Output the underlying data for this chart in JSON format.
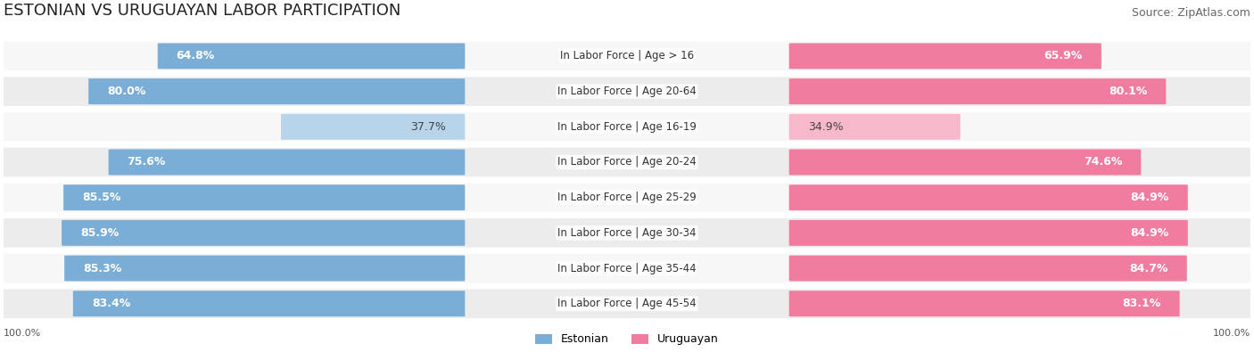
{
  "title": "ESTONIAN VS URUGUAYAN LABOR PARTICIPATION",
  "source": "Source: ZipAtlas.com",
  "categories": [
    "In Labor Force | Age > 16",
    "In Labor Force | Age 20-64",
    "In Labor Force | Age 16-19",
    "In Labor Force | Age 20-24",
    "In Labor Force | Age 25-29",
    "In Labor Force | Age 30-34",
    "In Labor Force | Age 35-44",
    "In Labor Force | Age 45-54"
  ],
  "estonian_values": [
    64.8,
    80.0,
    37.7,
    75.6,
    85.5,
    85.9,
    85.3,
    83.4
  ],
  "uruguayan_values": [
    65.9,
    80.1,
    34.9,
    74.6,
    84.9,
    84.9,
    84.7,
    83.1
  ],
  "estonian_color": "#7aaed6",
  "uruguayan_color": "#f07ca0",
  "estonian_color_light": "#b8d4ea",
  "uruguayan_color_light": "#f7b8cc",
  "bar_bg_color": "#f0f0f0",
  "row_bg_color_odd": "#f7f7f7",
  "row_bg_color_even": "#ececec",
  "label_color_dark": "#555555",
  "label_color_white": "#ffffff",
  "title_fontsize": 13,
  "source_fontsize": 9,
  "bar_fontsize": 9,
  "category_fontsize": 8.5,
  "legend_fontsize": 9,
  "axis_label_fontsize": 8,
  "max_value": 100.0,
  "fig_bg_color": "#ffffff"
}
